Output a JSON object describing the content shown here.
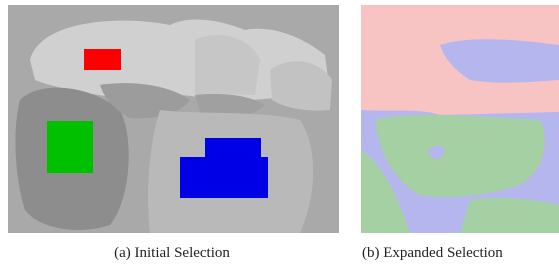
{
  "figure": {
    "panels": [
      {
        "caption": "(a) Initial Selection"
      },
      {
        "caption": "(b) Expanded Selection"
      }
    ]
  }
}
